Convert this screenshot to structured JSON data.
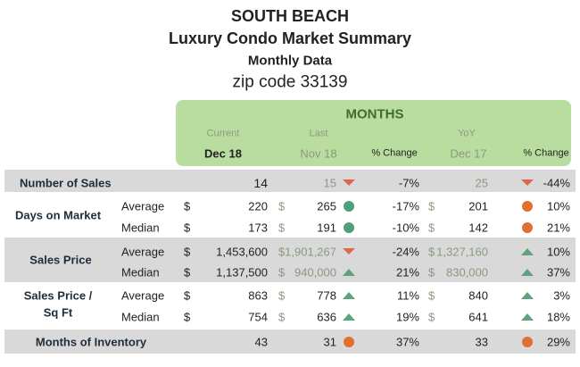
{
  "header": {
    "title": "SOUTH BEACH",
    "subtitle": "Luxury Condo Market Summary",
    "period": "Monthly Data",
    "zip": "zip code 33139"
  },
  "columns": {
    "group": "MONTHS",
    "current": "Current",
    "last": "Last",
    "yoy": "YoY",
    "current_month": "Dec 18",
    "last_month": "Nov 18",
    "last_change": "% Change",
    "yoy_month": "Dec 17",
    "yoy_change": "% Change"
  },
  "rows": [
    {
      "label": [
        "Number of Sales"
      ],
      "lines": [
        {
          "current": "14",
          "last": "15",
          "last_change": "-7%",
          "yoy": "25",
          "yoy_change": "-44%"
        }
      ]
    },
    {
      "label": [
        "Days on Market"
      ],
      "currency": "$",
      "lines": [
        {
          "stat": "Average",
          "current": "220",
          "last": "265",
          "last_change": "-17%",
          "yoy": "201",
          "yoy_change": "10%"
        },
        {
          "stat": "Median",
          "current": "173",
          "last": "191",
          "last_change": "-10%",
          "yoy": "142",
          "yoy_change": "21%"
        }
      ]
    },
    {
      "label": [
        "Sales Price"
      ],
      "currency": "$",
      "lines": [
        {
          "stat": "Average",
          "current": "1,453,600",
          "last": "1,901,267",
          "last_change": "-24%",
          "yoy": "1,327,160",
          "yoy_change": "10%"
        },
        {
          "stat": "Median",
          "current": "1,137,500",
          "last": "940,000",
          "last_change": "21%",
          "yoy": "830,000",
          "yoy_change": "37%"
        }
      ]
    },
    {
      "label": [
        "Sales Price /",
        "Sq Ft"
      ],
      "currency": "$",
      "lines": [
        {
          "stat": "Average",
          "current": "863",
          "last": "778",
          "last_change": "11%",
          "yoy": "840",
          "yoy_change": "3%"
        },
        {
          "stat": "Median",
          "current": "754",
          "last": "636",
          "last_change": "19%",
          "yoy": "641",
          "yoy_change": "18%"
        }
      ]
    },
    {
      "label": [
        "Months of Inventory"
      ],
      "lines": [
        {
          "current": "43",
          "last": "31",
          "last_change": "37%",
          "yoy": "33",
          "yoy_change": "29%"
        }
      ]
    }
  ]
}
